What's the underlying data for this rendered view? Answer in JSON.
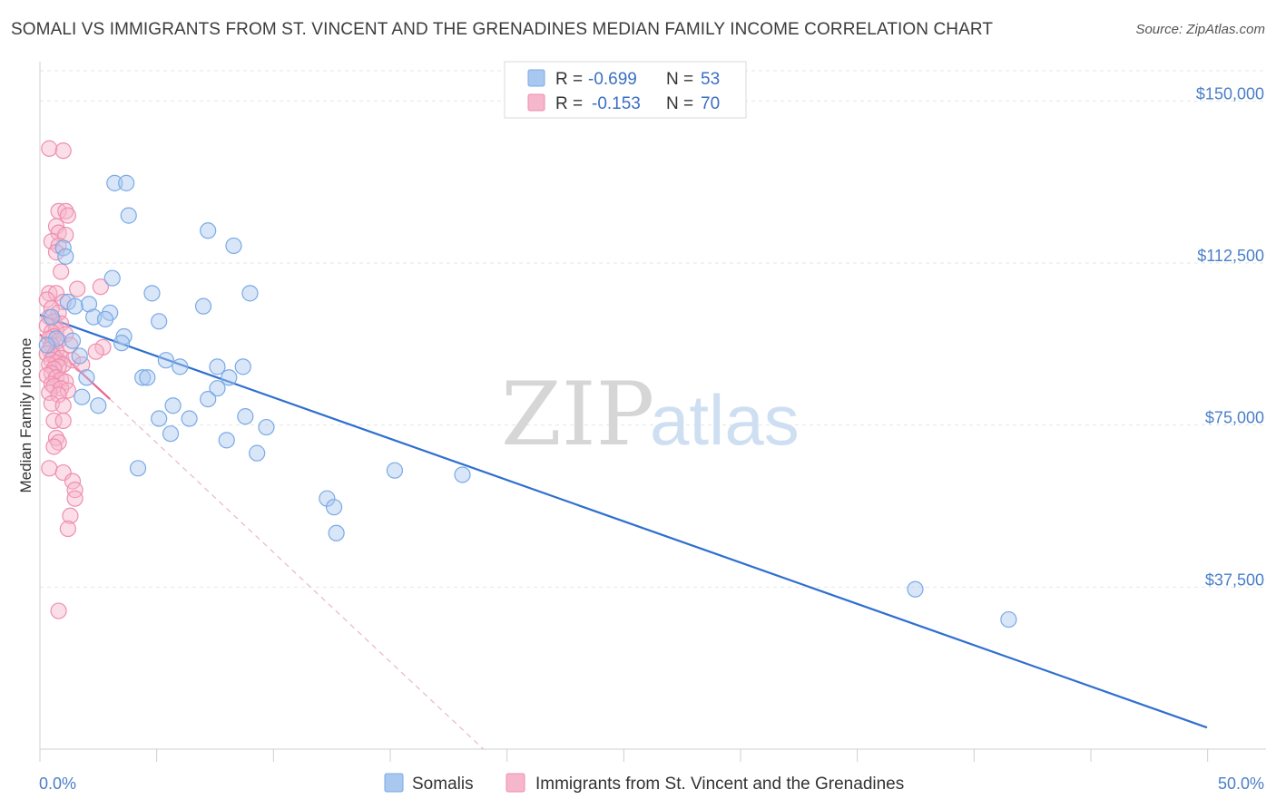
{
  "header": {
    "title": "SOMALI VS IMMIGRANTS FROM ST. VINCENT AND THE GRENADINES MEDIAN FAMILY INCOME CORRELATION CHART",
    "source": "Source: ZipAtlas.com"
  },
  "watermark": {
    "zip": "ZIP",
    "atlas": "atlas"
  },
  "stats_legend": {
    "rows": [
      {
        "r_label": "R =",
        "r_value": "-0.699",
        "n_label": "N =",
        "n_value": "53"
      },
      {
        "r_label": "R =",
        "r_value": "-0.153",
        "n_label": "N =",
        "n_value": "70"
      }
    ]
  },
  "colors": {
    "somali_fill": "#a9c8f0",
    "somali_stroke": "#7aaae6",
    "somali_line": "#2f6fcf",
    "svg_fill": "#f6b6cb",
    "svg_stroke": "#ee8fae",
    "svg_line": "#e8658f",
    "grid": "#e6e6e6",
    "axis": "#cfcfcf"
  },
  "chart_data": {
    "type": "scatter",
    "title": "SOMALI VS IMMIGRANTS FROM ST. VINCENT AND THE GRENADINES MEDIAN FAMILY INCOME CORRELATION CHART",
    "xlabel": "",
    "ylabel": "Median Family Income",
    "xlim": [
      0,
      50
    ],
    "ylim": [
      0,
      157000
    ],
    "x_tick_labels": [
      "0.0%",
      "50.0%"
    ],
    "y_ticks": [
      37500,
      75000,
      112500,
      150000
    ],
    "y_tick_labels": [
      "$37,500",
      "$75,000",
      "$112,500",
      "$150,000"
    ],
    "grid": true,
    "legend_position": "bottom",
    "series": [
      {
        "name": "Somalis",
        "r": -0.699,
        "n": 53,
        "trendline": {
          "x": [
            0,
            50
          ],
          "y": [
            100500,
            5000
          ]
        },
        "points": [
          [
            3.2,
            131000
          ],
          [
            3.7,
            131000
          ],
          [
            3.8,
            123500
          ],
          [
            7.2,
            120000
          ],
          [
            8.3,
            116500
          ],
          [
            1.0,
            116000
          ],
          [
            1.1,
            114000
          ],
          [
            3.1,
            109000
          ],
          [
            4.8,
            105500
          ],
          [
            9.0,
            105500
          ],
          [
            7.0,
            102500
          ],
          [
            2.1,
            103000
          ],
          [
            1.2,
            103500
          ],
          [
            1.5,
            102500
          ],
          [
            3.0,
            101000
          ],
          [
            0.5,
            100000
          ],
          [
            2.3,
            100000
          ],
          [
            2.8,
            99500
          ],
          [
            5.1,
            99000
          ],
          [
            0.7,
            95000
          ],
          [
            1.4,
            94500
          ],
          [
            3.6,
            95500
          ],
          [
            3.5,
            94000
          ],
          [
            1.7,
            91000
          ],
          [
            5.4,
            90000
          ],
          [
            6.0,
            88500
          ],
          [
            7.6,
            88500
          ],
          [
            8.7,
            88500
          ],
          [
            4.4,
            86000
          ],
          [
            4.6,
            86000
          ],
          [
            2.0,
            86000
          ],
          [
            8.1,
            86000
          ],
          [
            7.6,
            83500
          ],
          [
            1.8,
            81500
          ],
          [
            7.2,
            81000
          ],
          [
            2.5,
            79500
          ],
          [
            5.7,
            79500
          ],
          [
            8.8,
            77000
          ],
          [
            5.1,
            76500
          ],
          [
            6.4,
            76500
          ],
          [
            9.7,
            74500
          ],
          [
            5.6,
            73000
          ],
          [
            8.0,
            71500
          ],
          [
            9.3,
            68500
          ],
          [
            4.2,
            65000
          ],
          [
            15.2,
            64500
          ],
          [
            18.1,
            63500
          ],
          [
            12.3,
            58000
          ],
          [
            12.6,
            56000
          ],
          [
            12.7,
            50000
          ],
          [
            37.5,
            37000
          ],
          [
            41.5,
            30000
          ],
          [
            0.3,
            93500
          ]
        ]
      },
      {
        "name": "Immigrants from St. Vincent and the Grenadines",
        "r": -0.153,
        "n": 70,
        "trendline": {
          "x": [
            0,
            3.0
          ],
          "y": [
            96000,
            81000
          ],
          "dashed_extension": {
            "x": [
              3.0,
              19.0
            ],
            "y": [
              81000,
              0
            ]
          }
        },
        "points": [
          [
            0.4,
            139000
          ],
          [
            1.0,
            138500
          ],
          [
            0.8,
            124500
          ],
          [
            1.1,
            124500
          ],
          [
            1.2,
            123500
          ],
          [
            0.7,
            121000
          ],
          [
            0.8,
            119500
          ],
          [
            1.1,
            119000
          ],
          [
            0.5,
            117500
          ],
          [
            0.8,
            116500
          ],
          [
            0.7,
            115000
          ],
          [
            0.9,
            110500
          ],
          [
            1.6,
            106500
          ],
          [
            2.6,
            107000
          ],
          [
            0.4,
            105500
          ],
          [
            0.7,
            105500
          ],
          [
            0.3,
            104000
          ],
          [
            1.0,
            103500
          ],
          [
            0.5,
            102000
          ],
          [
            0.8,
            101000
          ],
          [
            0.4,
            100000
          ],
          [
            0.6,
            99000
          ],
          [
            0.9,
            98500
          ],
          [
            0.3,
            98000
          ],
          [
            0.7,
            97000
          ],
          [
            0.5,
            96500
          ],
          [
            1.1,
            96000
          ],
          [
            0.6,
            95500
          ],
          [
            0.4,
            95000
          ],
          [
            0.8,
            94500
          ],
          [
            0.5,
            93500
          ],
          [
            1.3,
            93500
          ],
          [
            2.7,
            93000
          ],
          [
            0.4,
            92500
          ],
          [
            0.7,
            92000
          ],
          [
            0.3,
            91500
          ],
          [
            2.4,
            92000
          ],
          [
            0.6,
            91000
          ],
          [
            0.9,
            90500
          ],
          [
            0.5,
            90000
          ],
          [
            1.4,
            90000
          ],
          [
            0.7,
            89500
          ],
          [
            0.4,
            89000
          ],
          [
            1.0,
            89000
          ],
          [
            0.8,
            88500
          ],
          [
            1.8,
            89000
          ],
          [
            0.6,
            88000
          ],
          [
            0.5,
            87000
          ],
          [
            0.3,
            86500
          ],
          [
            0.7,
            86000
          ],
          [
            0.9,
            85500
          ],
          [
            1.1,
            85000
          ],
          [
            0.5,
            84500
          ],
          [
            0.6,
            84000
          ],
          [
            0.9,
            83500
          ],
          [
            1.2,
            83000
          ],
          [
            0.4,
            82500
          ],
          [
            0.8,
            82000
          ],
          [
            0.5,
            80000
          ],
          [
            1.0,
            79500
          ],
          [
            0.6,
            76000
          ],
          [
            1.0,
            76000
          ],
          [
            0.7,
            72000
          ],
          [
            0.8,
            71000
          ],
          [
            0.6,
            70000
          ],
          [
            0.4,
            65000
          ],
          [
            1.0,
            64000
          ],
          [
            1.4,
            62000
          ],
          [
            1.5,
            60000
          ],
          [
            1.5,
            58000
          ]
        ],
        "extra_points": [
          [
            1.3,
            54000
          ],
          [
            1.2,
            51000
          ],
          [
            0.8,
            32000
          ]
        ]
      }
    ]
  }
}
